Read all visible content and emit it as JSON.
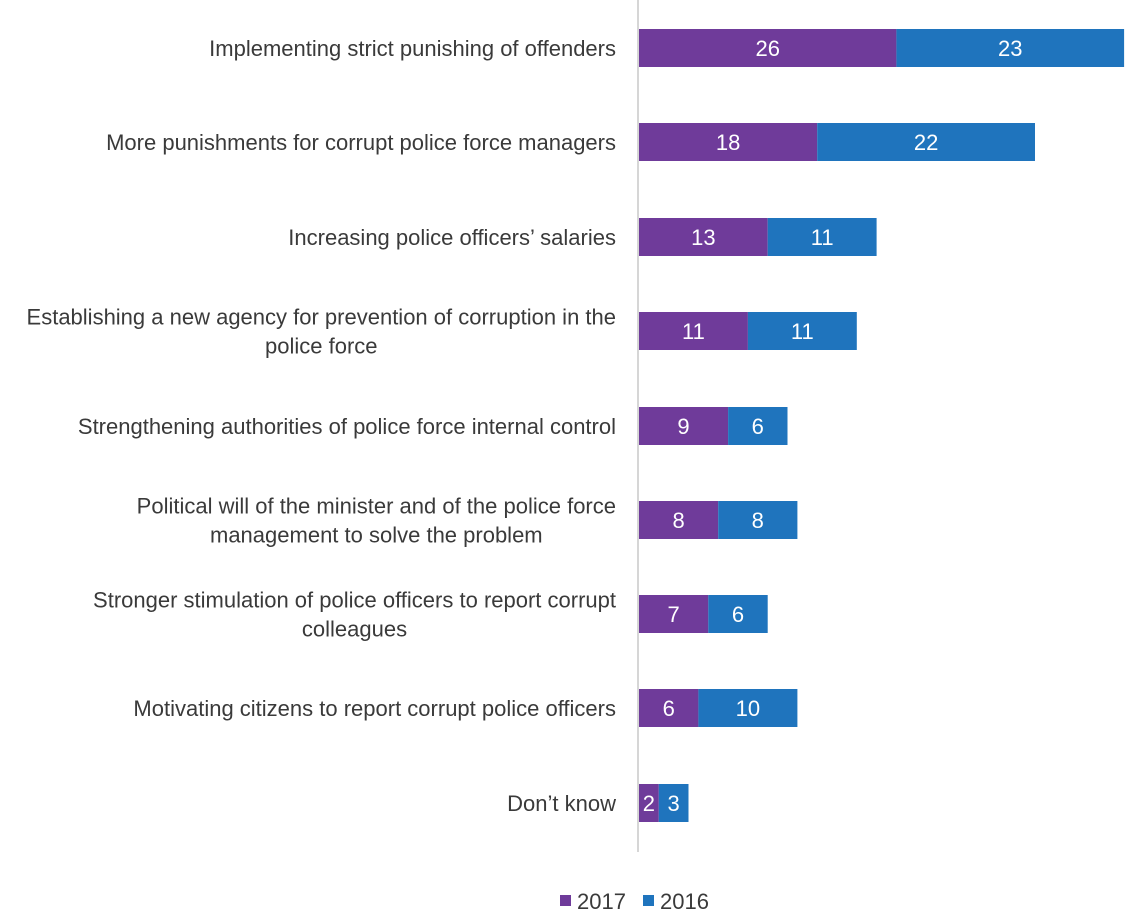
{
  "chart_data": {
    "type": "bar",
    "orientation": "horizontal",
    "stacked": true,
    "title": "",
    "xlabel": "",
    "ylabel": "",
    "categories": [
      "Implementing strict punishing of offenders",
      "More punishments for corrupt police force managers",
      "Increasing police officers’ salaries",
      "Establishing a new agency for prevention of corruption in the police force",
      "Strengthening authorities of police force internal control",
      "Political will of the minister and of the police force management to solve the problem",
      "Stronger stimulation of police officers to report corrupt colleagues",
      "Motivating citizens to report corrupt police officers",
      "Don’t know"
    ],
    "series": [
      {
        "name": "2017",
        "color": "#6f3b9a",
        "values": [
          26,
          18,
          13,
          11,
          9,
          8,
          7,
          6,
          2
        ]
      },
      {
        "name": "2016",
        "color": "#1f74bd",
        "values": [
          23,
          22,
          11,
          11,
          6,
          8,
          6,
          10,
          3
        ]
      }
    ],
    "xlim": [
      0,
      49
    ],
    "grid": false,
    "legend_position": "bottom",
    "data_labels": true
  }
}
